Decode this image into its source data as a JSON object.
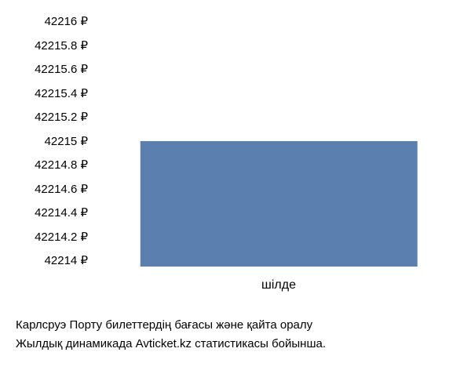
{
  "chart": {
    "type": "bar",
    "categories": [
      "шілде"
    ],
    "values": [
      42215
    ],
    "bar_colors": [
      "#5b7fae"
    ],
    "ylim": [
      42214,
      42216
    ],
    "ytick_step": 0.2,
    "y_tick_labels": [
      "42216 ₽",
      "42215.8 ₽",
      "42215.6 ₽",
      "42215.4 ₽",
      "42215.2 ₽",
      "42215 ₽",
      "42214.8 ₽",
      "42214.6 ₽",
      "42214.4 ₽",
      "42214.2 ₽",
      "42214 ₽"
    ],
    "background_color": "#ffffff",
    "bar_width_pct": 75,
    "label_fontsize": 15,
    "label_color": "#000000",
    "x_label_fontsize": 16
  },
  "caption": {
    "line1": "Карлсруэ Порту билеттердің бағасы және қайта оралу",
    "line2": "Жылдық динамикада Avticket.kz статистикасы бойынша.",
    "fontsize": 15,
    "color": "#000000"
  }
}
